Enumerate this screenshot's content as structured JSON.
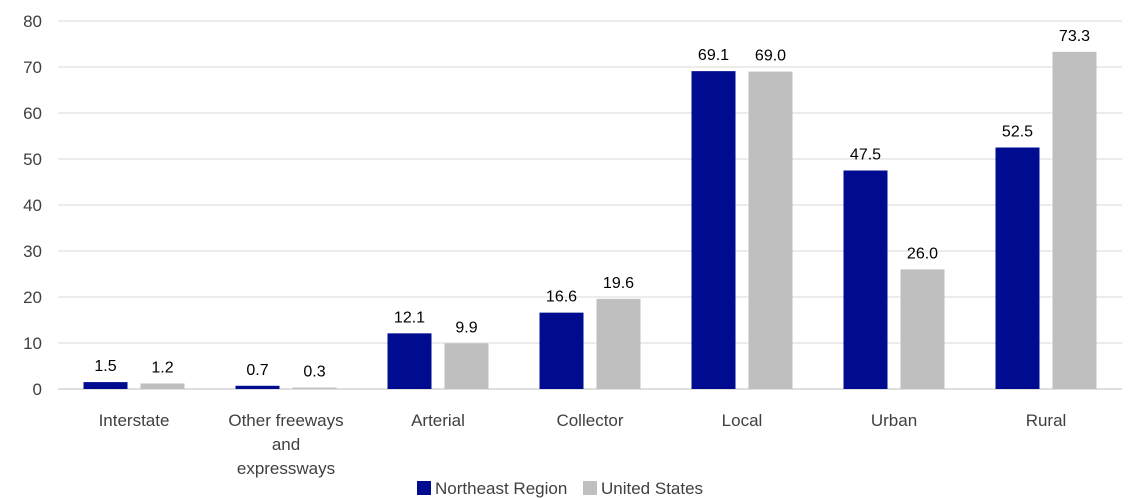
{
  "chart_data": {
    "type": "bar",
    "title": "",
    "xlabel": "",
    "ylabel": "",
    "ylim": [
      0,
      80
    ],
    "ytick_step": 10,
    "grid": true,
    "legend_position": "bottom",
    "categories": [
      [
        "Interstate"
      ],
      [
        "Other freeways",
        "and",
        "expressways"
      ],
      [
        "Arterial"
      ],
      [
        "Collector"
      ],
      [
        "Local"
      ],
      [
        "Urban"
      ],
      [
        "Rural"
      ]
    ],
    "series": [
      {
        "name": "Northeast Region",
        "color": "#000c8f",
        "values": [
          1.5,
          0.7,
          12.1,
          16.6,
          69.1,
          47.5,
          52.5
        ],
        "labels": [
          "1.5",
          "0.7",
          "12.1",
          "16.6",
          "69.1",
          "47.5",
          "52.5"
        ]
      },
      {
        "name": "United States",
        "color": "#bfbfbf",
        "values": [
          1.2,
          0.3,
          9.9,
          19.6,
          69.0,
          26.0,
          73.3
        ],
        "labels": [
          "1.2",
          "0.3",
          "9.9",
          "19.6",
          "69.0",
          "26.0",
          "73.3"
        ]
      }
    ]
  }
}
